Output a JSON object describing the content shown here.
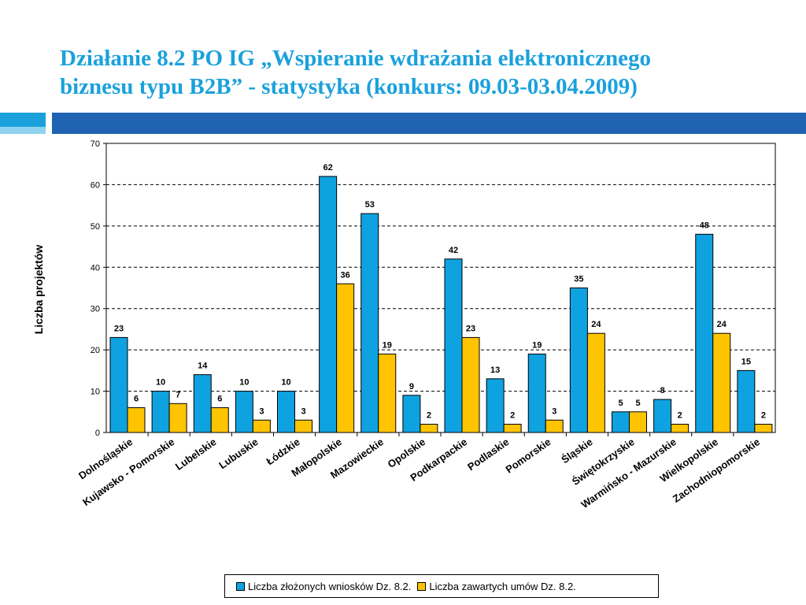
{
  "slide": {
    "title_line1": "Działanie 8.2 PO IG „Wspieranie wdrażania elektronicznego",
    "title_line2": "biznesu typu B2B”  - statystyka (konkurs: 09.03-03.04.2009)"
  },
  "colors": {
    "title": "#1aa1dc",
    "band_left": "#1aa1dc",
    "band_right": "#1f63b2",
    "series1": "#0fa2e0",
    "series2": "#ffc400"
  },
  "chart_data": {
    "type": "bar",
    "title": "",
    "xlabel": "",
    "ylabel": "Liczba projektów",
    "ylim": [
      0,
      70
    ],
    "yticks": [
      0,
      10,
      20,
      30,
      40,
      50,
      60,
      70
    ],
    "grid": true,
    "legend_position": "bottom",
    "categories": [
      "Dolnośląskie",
      "Kujawsko - Pomorskie",
      "Lubelskie",
      "Lubuskie",
      "Łódzkie",
      "Małopolskie",
      "Mazowieckie",
      "Opolskie",
      "Podkarpackie",
      "Podlaskie",
      "Pomorskie",
      "Śląskie",
      "Świętokrzyskie",
      "Warmińsko - Mazurskie",
      "Wielkopolskie",
      "Zachodniopomorskie"
    ],
    "series": [
      {
        "name": "Liczba złożonych wniosków Dz. 8.2.",
        "color": "#0fa2e0",
        "values": [
          23,
          10,
          14,
          10,
          10,
          62,
          53,
          9,
          42,
          13,
          19,
          35,
          5,
          8,
          48,
          15
        ]
      },
      {
        "name": "Liczba zawartych umów Dz. 8.2.",
        "color": "#ffc400",
        "values": [
          6,
          7,
          6,
          3,
          3,
          36,
          19,
          2,
          23,
          2,
          3,
          24,
          5,
          2,
          24,
          2
        ]
      }
    ]
  }
}
